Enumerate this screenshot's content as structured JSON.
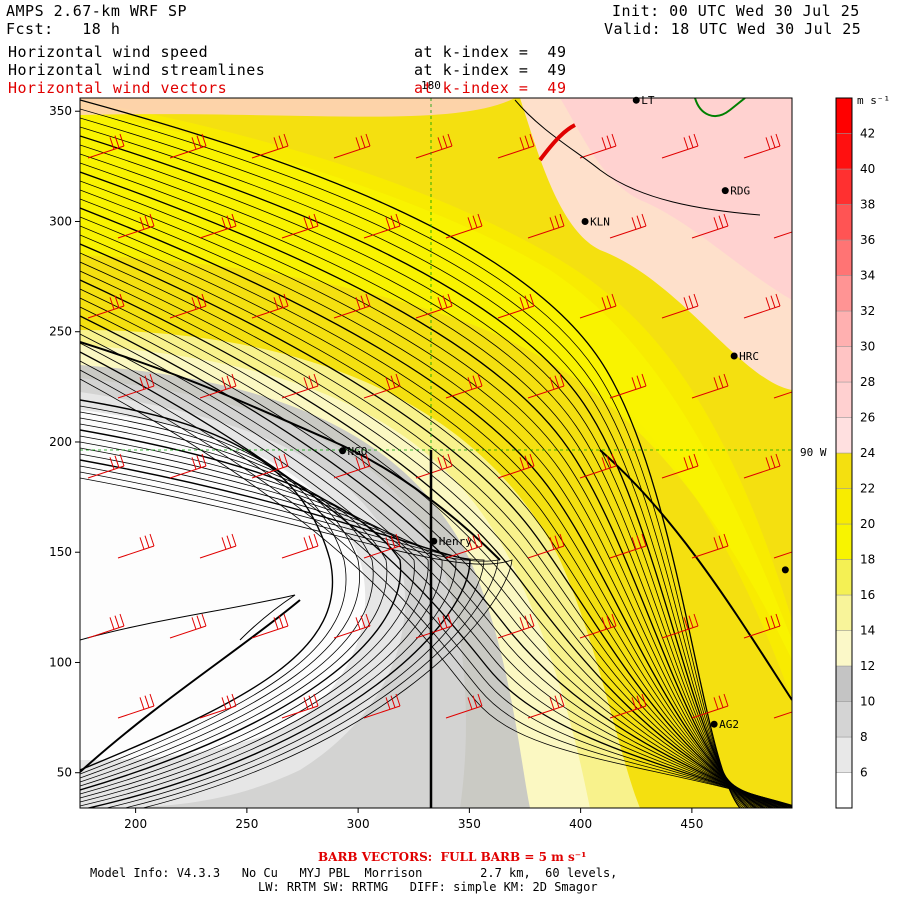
{
  "header": {
    "model": "AMPS 2.67-km WRF SP",
    "init": "Init: 00 UTC Wed 30 Jul 25",
    "fcst_label": "Fcst:",
    "fcst_value": "18 h",
    "valid": "Valid: 18 UTC Wed 30 Jul 25"
  },
  "fields": [
    {
      "name": "Horizontal wind speed",
      "level": "at k-index =  49",
      "color": "#000000"
    },
    {
      "name": "Horizontal wind streamlines",
      "level": "at k-index =  49",
      "color": "#000000"
    },
    {
      "name": "Horizontal wind vectors",
      "level": "at k-index =  49",
      "color": "#e00000"
    }
  ],
  "axes": {
    "x_ticks": [
      200,
      250,
      300,
      350,
      400,
      450
    ],
    "y_ticks": [
      50,
      100,
      150,
      200,
      250,
      300,
      350
    ],
    "x_range": [
      175,
      495
    ],
    "y_range": [
      34,
      356
    ]
  },
  "grid_labels": {
    "meridian_top": "180",
    "meridian_right": "90 W"
  },
  "stations": [
    {
      "name": "LT",
      "x": 425,
      "y": 355
    },
    {
      "name": "RDG",
      "x": 465,
      "y": 314
    },
    {
      "name": "KLN",
      "x": 402,
      "y": 300
    },
    {
      "name": "HRC",
      "x": 469,
      "y": 239
    },
    {
      "name": "NGO",
      "x": 293,
      "y": 196
    },
    {
      "name": "Henry",
      "x": 334,
      "y": 155
    },
    {
      "name": "",
      "x": 492,
      "y": 142
    },
    {
      "name": "AG2",
      "x": 460,
      "y": 72
    }
  ],
  "colorbar": {
    "unit": "m s⁻¹",
    "ticks": [
      6,
      8,
      10,
      12,
      14,
      16,
      18,
      20,
      22,
      24,
      26,
      28,
      30,
      32,
      34,
      36,
      38,
      40,
      42
    ],
    "colors": [
      "#ffffff",
      "#e8e8e8",
      "#d4d4d4",
      "#c4c4c4",
      "#fbf8c8",
      "#f8f49a",
      "#f4f054",
      "#f8f400",
      "#f8ec00",
      "#f4e010",
      "#ffe0e0",
      "#ffd0d0",
      "#ffc4c4",
      "#ffb0b0",
      "#ff9494",
      "#ff7474",
      "#ff5454",
      "#ff3030",
      "#ff1010",
      "#ff0000"
    ]
  },
  "footer": {
    "barb_note": "BARB VECTORS:  FULL BARB = 5 m s⁻¹",
    "line1": "Model Info: V4.3.3   No Cu   MYJ PBL  Morrison        2.7 km,  60 levels,",
    "line2": "LW: RRTM SW: RRTMG   DIFF: simple KM: 2D Smagor"
  }
}
